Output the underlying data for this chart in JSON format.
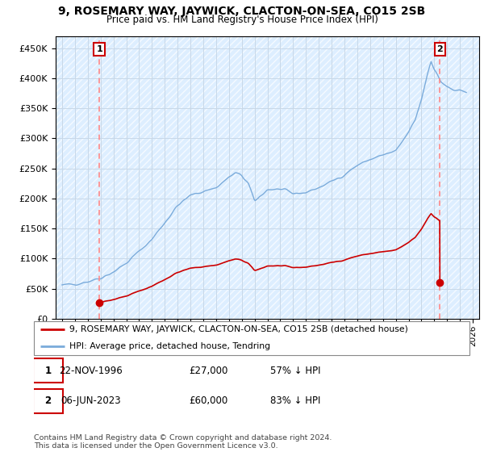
{
  "title": "9, ROSEMARY WAY, JAYWICK, CLACTON-ON-SEA, CO15 2SB",
  "subtitle": "Price paid vs. HM Land Registry's House Price Index (HPI)",
  "hpi_color": "#7aabdb",
  "price_color": "#cc0000",
  "dashed_line_color": "#ff8888",
  "grid_color": "#c8d8e8",
  "bg_color": "#ddeeff",
  "ylim": [
    0,
    470000
  ],
  "yticks": [
    0,
    50000,
    100000,
    150000,
    200000,
    250000,
    300000,
    350000,
    400000,
    450000
  ],
  "ytick_labels": [
    "£0",
    "£50K",
    "£100K",
    "£150K",
    "£200K",
    "£250K",
    "£300K",
    "£350K",
    "£400K",
    "£450K"
  ],
  "xlim_start": 1993.5,
  "xlim_end": 2026.5,
  "purchase1_year": 1996.9,
  "purchase1_price": 27000,
  "purchase2_year": 2023.43,
  "purchase2_price": 60000,
  "purchase1_label": "1",
  "purchase2_label": "2",
  "legend_line1": "9, ROSEMARY WAY, JAYWICK, CLACTON-ON-SEA, CO15 2SB (detached house)",
  "legend_line2": "HPI: Average price, detached house, Tendring",
  "table_row1": [
    "1",
    "22-NOV-1996",
    "£27,000",
    "57% ↓ HPI"
  ],
  "table_row2": [
    "2",
    "06-JUN-2023",
    "£60,000",
    "83% ↓ HPI"
  ],
  "footnote": "Contains HM Land Registry data © Crown copyright and database right 2024.\nThis data is licensed under the Open Government Licence v3.0."
}
